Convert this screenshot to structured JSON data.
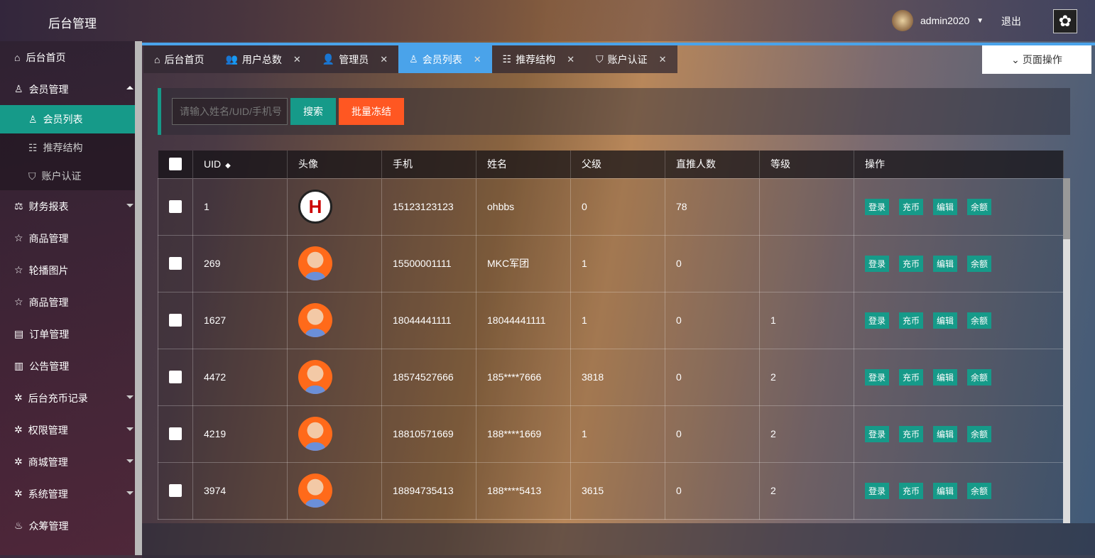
{
  "header": {
    "title": "后台管理",
    "username": "admin2020",
    "logout": "退出"
  },
  "sidebar": {
    "items": [
      {
        "label": "后台首页",
        "icon": "⌂"
      },
      {
        "label": "会员管理",
        "icon": "♙",
        "expanded": true,
        "children": [
          {
            "label": "会员列表",
            "icon": "♙",
            "active": true
          },
          {
            "label": "推荐结构",
            "icon": "☷"
          },
          {
            "label": "账户认证",
            "icon": "⛉"
          }
        ]
      },
      {
        "label": "财务报表",
        "icon": "⚖",
        "arrow": true
      },
      {
        "label": "商品管理",
        "icon": "☆"
      },
      {
        "label": "轮播图片",
        "icon": "☆"
      },
      {
        "label": "商品管理",
        "icon": "☆"
      },
      {
        "label": "订单管理",
        "icon": "▤"
      },
      {
        "label": "公告管理",
        "icon": "▥"
      },
      {
        "label": "后台充币记录",
        "icon": "✲",
        "arrow": true
      },
      {
        "label": "权限管理",
        "icon": "✲",
        "arrow": true
      },
      {
        "label": "商城管理",
        "icon": "✲",
        "arrow": true
      },
      {
        "label": "系统管理",
        "icon": "✲",
        "arrow": true
      },
      {
        "label": "众筹管理",
        "icon": "♨"
      }
    ]
  },
  "tabs": [
    {
      "label": "后台首页",
      "icon": "⌂",
      "closable": false
    },
    {
      "label": "用户总数",
      "icon": "👥",
      "closable": true
    },
    {
      "label": "管理员",
      "icon": "👤",
      "closable": true
    },
    {
      "label": "会员列表",
      "icon": "♙",
      "closable": true,
      "active": true
    },
    {
      "label": "推荐结构",
      "icon": "☷",
      "closable": true
    },
    {
      "label": "账户认证",
      "icon": "⛉",
      "closable": true
    }
  ],
  "tab_close": "✕",
  "page_ops": "页面操作",
  "toolbar": {
    "search_placeholder": "请输入姓名/UID/手机号",
    "search": "搜索",
    "freeze": "批量冻结"
  },
  "table": {
    "columns": [
      "UID",
      "头像",
      "手机",
      "姓名",
      "父级",
      "直推人数",
      "等级",
      "操作"
    ],
    "actions": [
      "登录",
      "充币",
      "编辑",
      "余额"
    ],
    "rows": [
      {
        "uid": "1",
        "avatar": "logo",
        "phone": "15123123123",
        "name": "ohbbs",
        "parent": "0",
        "direct": "78",
        "level": ""
      },
      {
        "uid": "269",
        "avatar": "default",
        "phone": "15500001111",
        "name": "MKC军团",
        "parent": "1",
        "direct": "0",
        "level": ""
      },
      {
        "uid": "1627",
        "avatar": "default",
        "phone": "18044441111",
        "name": "18044441111",
        "parent": "1",
        "direct": "0",
        "level": "1"
      },
      {
        "uid": "4472",
        "avatar": "default",
        "phone": "18574527666",
        "name": "185****7666",
        "parent": "3818",
        "direct": "0",
        "level": "2"
      },
      {
        "uid": "4219",
        "avatar": "default",
        "phone": "18810571669",
        "name": "188****1669",
        "parent": "1",
        "direct": "0",
        "level": "2"
      },
      {
        "uid": "3974",
        "avatar": "default",
        "phone": "18894735413",
        "name": "188****5413",
        "parent": "3615",
        "direct": "0",
        "level": "2"
      }
    ]
  },
  "colors": {
    "accent": "#169a89",
    "tab_active": "#4aa3ea",
    "danger": "#ff5722"
  }
}
